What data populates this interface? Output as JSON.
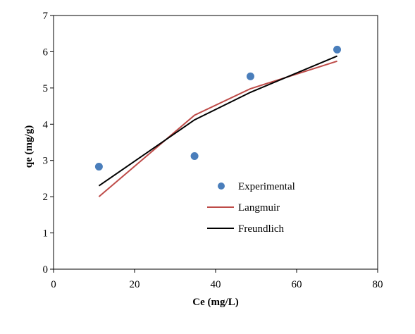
{
  "chart_data": {
    "type": "scatter",
    "title": "",
    "xlabel": "Ce (mg/L)",
    "ylabel": "qe (mg/g)",
    "xlim": [
      0,
      80
    ],
    "ylim": [
      0,
      7
    ],
    "xticks": [
      "0",
      "20",
      "40",
      "60",
      "80"
    ],
    "yticks": [
      "0",
      "1",
      "2",
      "3",
      "4",
      "5",
      "6",
      "7"
    ],
    "grid": false,
    "legend_position": "right-center",
    "series": [
      {
        "name": "Experimental",
        "kind": "markers",
        "color": "#4a7ebb",
        "points": [
          [
            11.2,
            2.83
          ],
          [
            34.8,
            3.12
          ],
          [
            48.6,
            5.32
          ],
          [
            70.0,
            6.06
          ]
        ]
      },
      {
        "name": "Langmuir",
        "kind": "line",
        "color": "#be4b48",
        "points": [
          [
            11.2,
            2.0
          ],
          [
            34.8,
            4.25
          ],
          [
            48.6,
            4.98
          ],
          [
            70.0,
            5.74
          ]
        ]
      },
      {
        "name": "Freundlich",
        "kind": "line",
        "color": "#000000",
        "points": [
          [
            11.2,
            2.3
          ],
          [
            34.8,
            4.12
          ],
          [
            48.6,
            4.88
          ],
          [
            70.0,
            5.88
          ]
        ]
      }
    ]
  }
}
